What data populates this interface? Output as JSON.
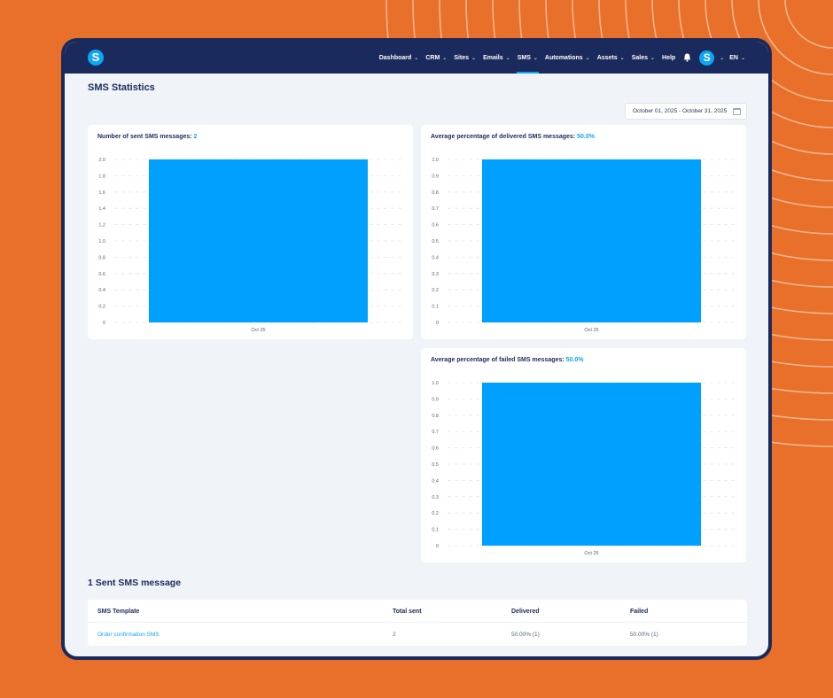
{
  "nav": {
    "logo_letter": "S",
    "items": [
      {
        "label": "Dashboard",
        "has_dropdown": true,
        "active": false
      },
      {
        "label": "CRM",
        "has_dropdown": true,
        "active": false
      },
      {
        "label": "Sites",
        "has_dropdown": true,
        "active": false
      },
      {
        "label": "Emails",
        "has_dropdown": true,
        "active": false
      },
      {
        "label": "SMS",
        "has_dropdown": true,
        "active": true
      },
      {
        "label": "Automations",
        "has_dropdown": true,
        "active": false
      },
      {
        "label": "Assets",
        "has_dropdown": true,
        "active": false
      },
      {
        "label": "Sales",
        "has_dropdown": true,
        "active": false
      },
      {
        "label": "Help",
        "has_dropdown": false,
        "active": false
      }
    ],
    "icons": {
      "notifications": "bell-icon",
      "avatar": "avatar-icon"
    },
    "avatar_letter": "S",
    "language": "EN"
  },
  "page": {
    "title": "SMS Statistics",
    "date_range": "October 01, 2025 - October 31, 2025"
  },
  "colors": {
    "accent": "#0EA5F5",
    "nav_bg": "#1B2A5C",
    "frame_bg": "#E8702A"
  },
  "cards": {
    "sent": {
      "title": "Number of sent SMS messages:",
      "value": "2"
    },
    "delivered": {
      "title": "Average percentage of delivered SMS messages:",
      "value": "50.0%"
    },
    "failed": {
      "title": "Average percentage of failed SMS messages:",
      "value": "50.0%"
    }
  },
  "chart_data": [
    {
      "id": "sent",
      "type": "bar",
      "categories": [
        "Oct 25"
      ],
      "values": [
        2
      ],
      "ylim": [
        0,
        2
      ],
      "yticks": [
        "0",
        "0.2",
        "0.4",
        "0.6",
        "0.8",
        "1.0",
        "1.2",
        "1.4",
        "1.6",
        "1.8",
        "2.0"
      ],
      "grid": true,
      "color": "#00A0FF"
    },
    {
      "id": "delivered",
      "type": "bar",
      "categories": [
        "Oct 25"
      ],
      "values": [
        1
      ],
      "ylim": [
        0,
        1
      ],
      "yticks": [
        "0",
        "0.1",
        "0.2",
        "0.3",
        "0.4",
        "0.5",
        "0.6",
        "0.7",
        "0.8",
        "0.9",
        "1.0"
      ],
      "grid": true,
      "color": "#00A0FF"
    },
    {
      "id": "failed",
      "type": "bar",
      "categories": [
        "Oct 25"
      ],
      "values": [
        1
      ],
      "ylim": [
        0,
        1
      ],
      "yticks": [
        "0",
        "0.1",
        "0.2",
        "0.3",
        "0.4",
        "0.5",
        "0.6",
        "0.7",
        "0.8",
        "0.9",
        "1.0"
      ],
      "grid": true,
      "color": "#00A0FF"
    }
  ],
  "messages": {
    "section_title": "1 Sent SMS message",
    "columns": [
      "SMS Template",
      "Total sent",
      "Delivered",
      "Failed"
    ],
    "rows": [
      {
        "template": "Order confirmation SMS",
        "total_sent": "2",
        "delivered": "50.00% (1)",
        "failed": "50.00% (1)"
      }
    ]
  }
}
